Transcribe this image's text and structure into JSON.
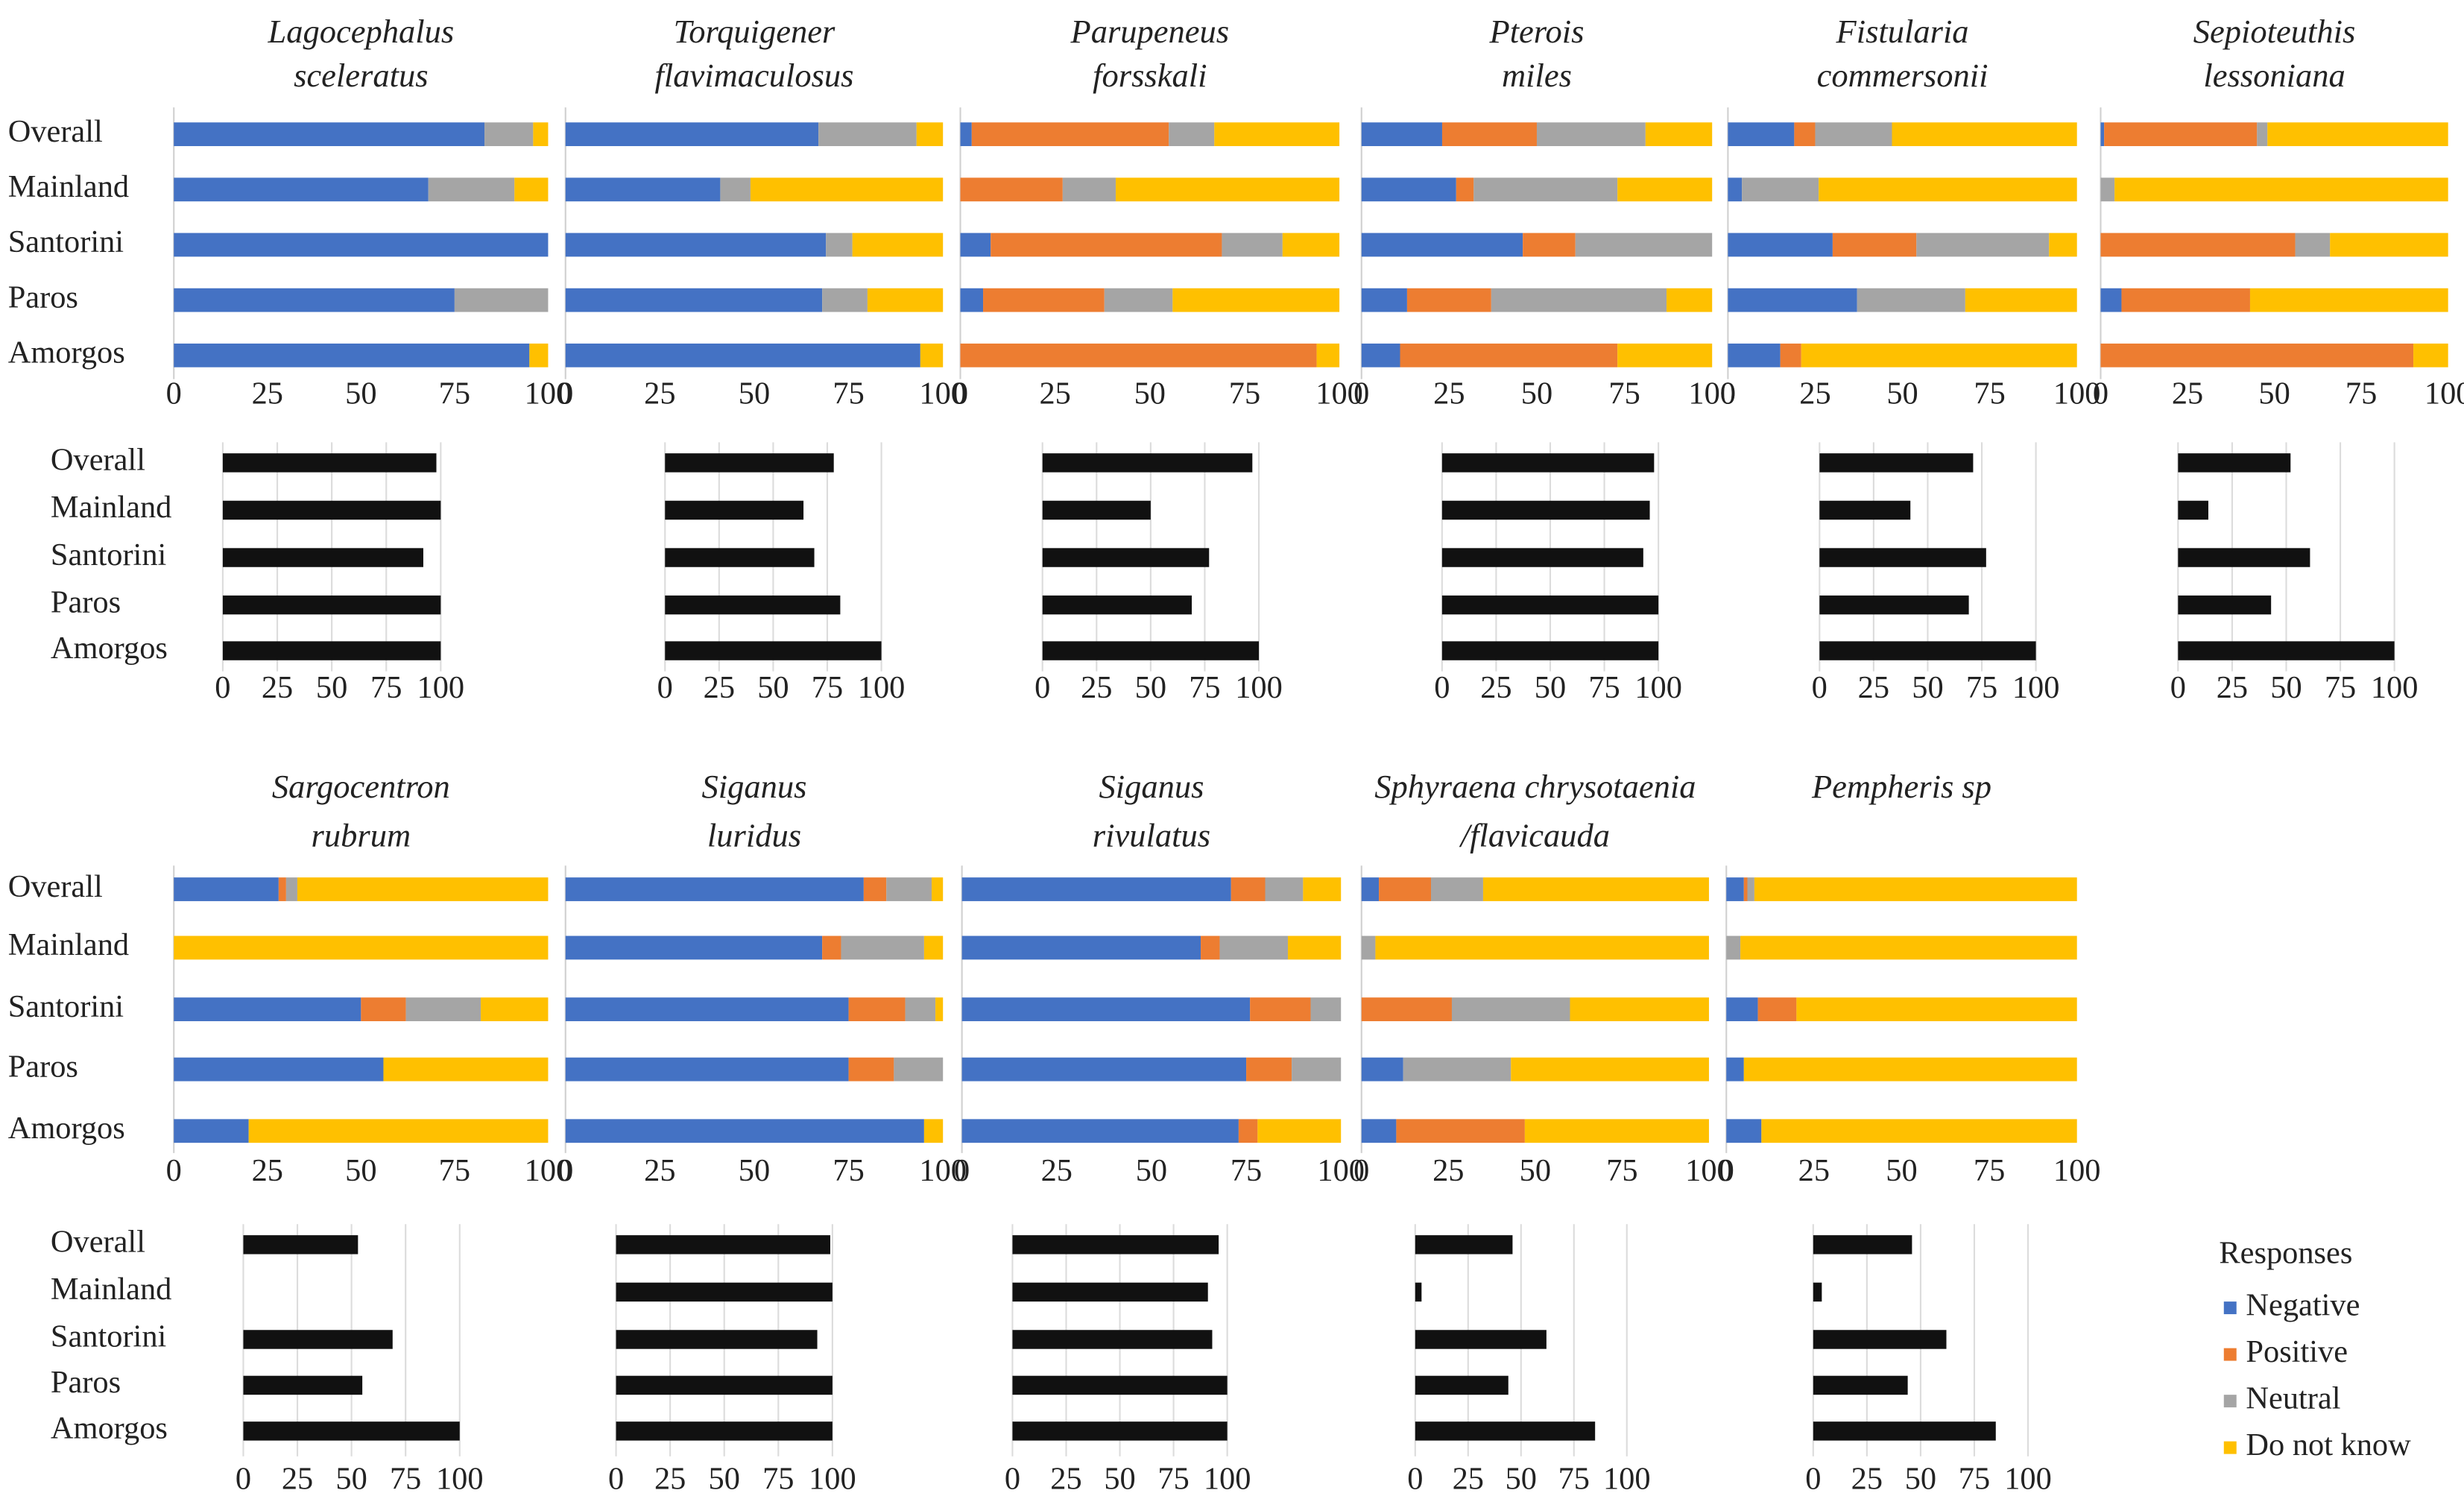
{
  "legend": {
    "title": "Responses",
    "items": [
      {
        "name": "Negative",
        "color": "#4472c4"
      },
      {
        "name": "Positive",
        "color": "#ed7d31"
      },
      {
        "name": "Neutral",
        "color": "#a5a5a5"
      },
      {
        "name": "Do not know",
        "color": "#ffc000"
      }
    ]
  },
  "chart_data": [
    {
      "type": "stacked_bar",
      "title": [
        "Lagocephalus",
        "sceleratus"
      ],
      "categories": [
        "Overall",
        "Mainland",
        "Santorini",
        "Paros",
        "Amorgos"
      ],
      "series": [
        {
          "values": [
            83,
            68,
            100,
            75,
            95
          ]
        },
        {
          "values": [
            0,
            0,
            0,
            0,
            0
          ]
        },
        {
          "values": [
            13,
            23,
            0,
            25,
            0
          ]
        },
        {
          "values": [
            4,
            9,
            0,
            0,
            5
          ]
        }
      ],
      "xlim": [
        0,
        100
      ],
      "xticks": [
        0,
        25,
        50,
        75,
        100
      ]
    },
    {
      "type": "bar",
      "categories": [
        "Overall",
        "Mainland",
        "Santorini",
        "Paros",
        "Amorgos"
      ],
      "values": [
        98,
        100,
        92,
        100,
        100
      ],
      "color": "#111111",
      "xlim": [
        0,
        100
      ],
      "xticks": [
        0,
        25,
        50,
        75,
        100
      ],
      "grid": true
    },
    {
      "type": "stacked_bar",
      "title": [
        "Torquigener",
        "flavimaculosus"
      ],
      "series": [
        {
          "values": [
            67,
            41,
            69,
            68,
            94
          ]
        },
        {
          "values": [
            0,
            0,
            0,
            0,
            0
          ]
        },
        {
          "values": [
            26,
            8,
            7,
            12,
            0
          ]
        },
        {
          "values": [
            7,
            51,
            24,
            20,
            6
          ]
        }
      ],
      "xlim": [
        0,
        100
      ],
      "xticks": [
        0,
        25,
        50,
        75,
        100
      ]
    },
    {
      "type": "bar",
      "values": [
        78,
        64,
        69,
        81,
        100
      ],
      "color": "#111111",
      "xlim": [
        0,
        100
      ],
      "xticks": [
        0,
        25,
        50,
        75,
        100
      ],
      "grid": true
    },
    {
      "type": "stacked_bar",
      "title": [
        "Parupeneus",
        "forsskali"
      ],
      "series": [
        {
          "values": [
            3,
            0,
            8,
            6,
            0
          ]
        },
        {
          "values": [
            52,
            27,
            61,
            32,
            94
          ]
        },
        {
          "values": [
            12,
            14,
            16,
            18,
            0
          ]
        },
        {
          "values": [
            33,
            59,
            15,
            44,
            6
          ]
        }
      ],
      "xlim": [
        0,
        100
      ],
      "xticks": [
        0,
        25,
        50,
        75,
        100
      ]
    },
    {
      "type": "bar",
      "values": [
        97,
        50,
        77,
        69,
        100
      ],
      "color": "#111111",
      "xlim": [
        0,
        100
      ],
      "xticks": [
        0,
        25,
        50,
        75,
        100
      ],
      "grid": true
    },
    {
      "type": "stacked_bar",
      "title": [
        "Pterois",
        "miles"
      ],
      "series": [
        {
          "values": [
            23,
            27,
            46,
            13,
            11
          ]
        },
        {
          "values": [
            27,
            5,
            15,
            24,
            62
          ]
        },
        {
          "values": [
            31,
            41,
            39,
            50,
            0
          ]
        },
        {
          "values": [
            19,
            27,
            0,
            13,
            27
          ]
        }
      ],
      "xlim": [
        0,
        100
      ],
      "xticks": [
        0,
        25,
        50,
        75,
        100
      ]
    },
    {
      "type": "bar",
      "values": [
        98,
        96,
        93,
        100,
        100
      ],
      "color": "#111111",
      "xlim": [
        0,
        100
      ],
      "xticks": [
        0,
        25,
        50,
        75,
        100
      ],
      "grid": true
    },
    {
      "type": "stacked_bar",
      "title": [
        "Fistularia",
        "commersonii"
      ],
      "series": [
        {
          "values": [
            19,
            4,
            30,
            37,
            15
          ]
        },
        {
          "values": [
            6,
            0,
            24,
            0,
            6
          ]
        },
        {
          "values": [
            22,
            22,
            38,
            31,
            0
          ]
        },
        {
          "values": [
            53,
            74,
            8,
            32,
            79
          ]
        }
      ],
      "xlim": [
        0,
        100
      ],
      "xticks": [
        0,
        25,
        50,
        75,
        100
      ]
    },
    {
      "type": "bar",
      "values": [
        71,
        42,
        77,
        69,
        100
      ],
      "color": "#111111",
      "xlim": [
        0,
        100
      ],
      "xticks": [
        0,
        25,
        50,
        75,
        100
      ],
      "grid": true
    },
    {
      "type": "stacked_bar",
      "title": [
        "Sepioteuthis",
        "lessoniana"
      ],
      "series": [
        {
          "values": [
            1,
            0,
            0,
            6,
            0
          ]
        },
        {
          "values": [
            44,
            0,
            56,
            37,
            90
          ]
        },
        {
          "values": [
            3,
            4,
            10,
            0,
            0
          ]
        },
        {
          "values": [
            52,
            96,
            34,
            57,
            10
          ]
        }
      ],
      "xlim": [
        0,
        100
      ],
      "xticks": [
        0,
        25,
        50,
        75,
        100
      ]
    },
    {
      "type": "bar",
      "values": [
        52,
        14,
        61,
        43,
        100
      ],
      "color": "#111111",
      "xlim": [
        0,
        100
      ],
      "xticks": [
        0,
        25,
        50,
        75,
        100
      ],
      "grid": true
    },
    {
      "type": "stacked_bar",
      "title": [
        "Sargocentron",
        "rubrum"
      ],
      "categories": [
        "Overall",
        "Mainland",
        "Santorini",
        "Paros",
        "Amorgos"
      ],
      "series": [
        {
          "values": [
            28,
            0,
            50,
            56,
            20
          ]
        },
        {
          "values": [
            2,
            0,
            12,
            0,
            0
          ]
        },
        {
          "values": [
            3,
            0,
            20,
            0,
            0
          ]
        },
        {
          "values": [
            67,
            100,
            18,
            44,
            80
          ]
        }
      ],
      "xlim": [
        0,
        100
      ],
      "xticks": [
        0,
        25,
        50,
        75,
        100
      ]
    },
    {
      "type": "bar",
      "categories": [
        "Overall",
        "Mainland",
        "Santorini",
        "Paros",
        "Amorgos"
      ],
      "values": [
        53,
        0,
        69,
        55,
        100
      ],
      "color": "#111111",
      "xlim": [
        0,
        100
      ],
      "xticks": [
        0,
        25,
        50,
        75,
        100
      ],
      "grid": true
    },
    {
      "type": "stacked_bar",
      "title": [
        "Siganus",
        "luridus"
      ],
      "series": [
        {
          "values": [
            79,
            68,
            75,
            75,
            95
          ]
        },
        {
          "values": [
            6,
            5,
            15,
            12,
            0
          ]
        },
        {
          "values": [
            12,
            22,
            8,
            13,
            0
          ]
        },
        {
          "values": [
            3,
            5,
            2,
            0,
            5
          ]
        }
      ],
      "xlim": [
        0,
        100
      ],
      "xticks": [
        0,
        25,
        50,
        75,
        100
      ]
    },
    {
      "type": "bar",
      "values": [
        99,
        100,
        93,
        100,
        100
      ],
      "color": "#111111",
      "xlim": [
        0,
        100
      ],
      "xticks": [
        0,
        25,
        50,
        75,
        100
      ],
      "grid": true
    },
    {
      "type": "stacked_bar",
      "title": [
        "Siganus",
        "rivulatus"
      ],
      "series": [
        {
          "values": [
            71,
            63,
            76,
            75,
            73
          ]
        },
        {
          "values": [
            9,
            5,
            16,
            12,
            5
          ]
        },
        {
          "values": [
            10,
            18,
            8,
            13,
            0
          ]
        },
        {
          "values": [
            10,
            14,
            0,
            0,
            22
          ]
        }
      ],
      "xlim": [
        0,
        100
      ],
      "xticks": [
        0,
        25,
        50,
        75,
        100
      ]
    },
    {
      "type": "bar",
      "values": [
        96,
        91,
        93,
        100,
        100
      ],
      "color": "#111111",
      "xlim": [
        0,
        100
      ],
      "xticks": [
        0,
        25,
        50,
        75,
        100
      ],
      "grid": true
    },
    {
      "type": "stacked_bar",
      "title": [
        "Sphyraena chrysotaenia",
        "/flavicauda"
      ],
      "series": [
        {
          "values": [
            5,
            0,
            0,
            12,
            10
          ]
        },
        {
          "values": [
            15,
            0,
            26,
            0,
            37
          ]
        },
        {
          "values": [
            15,
            4,
            34,
            31,
            0
          ]
        },
        {
          "values": [
            65,
            96,
            40,
            57,
            53
          ]
        }
      ],
      "xlim": [
        0,
        100
      ],
      "xticks": [
        0,
        25,
        50,
        75,
        100
      ]
    },
    {
      "type": "bar",
      "values": [
        46,
        3,
        62,
        44,
        85
      ],
      "color": "#111111",
      "xlim": [
        0,
        100
      ],
      "xticks": [
        0,
        25,
        50,
        75,
        100
      ],
      "grid": true
    },
    {
      "type": "stacked_bar",
      "title": [
        "Pempheris sp"
      ],
      "series": [
        {
          "values": [
            5,
            0,
            9,
            5,
            10
          ]
        },
        {
          "values": [
            1,
            0,
            11,
            0,
            0
          ]
        },
        {
          "values": [
            2,
            4,
            0,
            0,
            0
          ]
        },
        {
          "values": [
            92,
            96,
            80,
            95,
            90
          ]
        }
      ],
      "xlim": [
        0,
        100
      ],
      "xticks": [
        0,
        25,
        50,
        75,
        100
      ]
    },
    {
      "type": "bar",
      "values": [
        46,
        4,
        62,
        44,
        85
      ],
      "color": "#111111",
      "xlim": [
        0,
        100
      ],
      "xticks": [
        0,
        25,
        50,
        75,
        100
      ],
      "grid": true
    }
  ]
}
